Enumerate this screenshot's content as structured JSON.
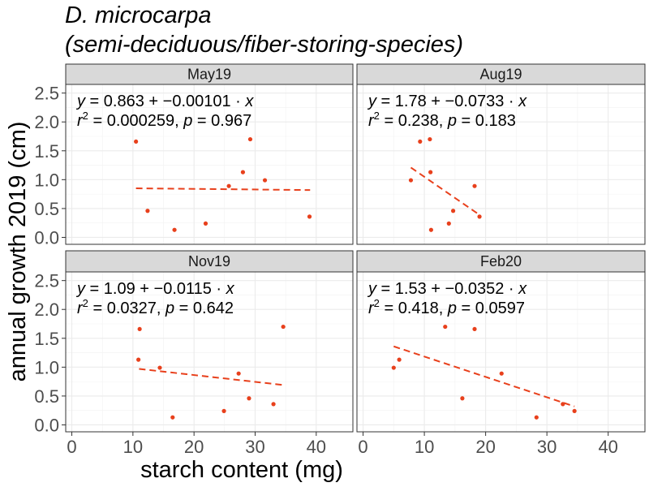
{
  "chart_data": {
    "type": "scatter",
    "title_line1": "D. microcarpa",
    "title_line2": "(semi-deciduous/fiber-storing-species)",
    "xlabel": "starch content (mg)",
    "ylabel": "annual growth 2019 (cm)",
    "xlim": [
      -1,
      46
    ],
    "ylim": [
      -0.12,
      2.65
    ],
    "x_ticks": [
      0,
      10,
      20,
      30,
      40
    ],
    "y_ticks": [
      0.0,
      0.5,
      1.0,
      1.5,
      2.0,
      2.5
    ],
    "x_tick_labels": [
      "0",
      "10",
      "20",
      "30",
      "40"
    ],
    "y_tick_labels": [
      "0.0",
      "0.5",
      "1.0",
      "1.5",
      "2.0",
      "2.5"
    ],
    "point_color": "#e8401c",
    "line_color": "#e8401c",
    "grid": true,
    "panels": [
      {
        "label": "May19",
        "eq_intercept": "0.863",
        "eq_slope": "0.00101",
        "r2": "0.000259",
        "p": "0.967",
        "fit_x": [
          10.5,
          39
        ],
        "fit_y": [
          0.85,
          0.82
        ],
        "points": [
          {
            "x": 10.5,
            "y": 1.66
          },
          {
            "x": 12.4,
            "y": 0.46
          },
          {
            "x": 16.8,
            "y": 0.13
          },
          {
            "x": 21.9,
            "y": 0.24
          },
          {
            "x": 25.7,
            "y": 0.89
          },
          {
            "x": 28.0,
            "y": 1.13
          },
          {
            "x": 29.2,
            "y": 1.7
          },
          {
            "x": 31.6,
            "y": 0.99
          },
          {
            "x": 38.9,
            "y": 0.36
          }
        ]
      },
      {
        "label": "Aug19",
        "eq_intercept": "1.78",
        "eq_slope": "0.0733",
        "r2": "0.238",
        "p": "0.183",
        "fit_x": [
          7.8,
          19
        ],
        "fit_y": [
          1.21,
          0.39
        ],
        "points": [
          {
            "x": 7.8,
            "y": 0.99
          },
          {
            "x": 9.3,
            "y": 1.66
          },
          {
            "x": 10.9,
            "y": 1.7
          },
          {
            "x": 11.0,
            "y": 1.13
          },
          {
            "x": 11.1,
            "y": 0.13
          },
          {
            "x": 14.0,
            "y": 0.24
          },
          {
            "x": 14.7,
            "y": 0.46
          },
          {
            "x": 18.2,
            "y": 0.89
          },
          {
            "x": 19.0,
            "y": 0.36
          }
        ]
      },
      {
        "label": "Nov19",
        "eq_intercept": "1.09",
        "eq_slope": "0.0115",
        "r2": "0.0327",
        "p": "0.642",
        "fit_x": [
          11,
          34.7
        ],
        "fit_y": [
          0.97,
          0.69
        ],
        "points": [
          {
            "x": 10.9,
            "y": 1.13
          },
          {
            "x": 11.1,
            "y": 1.66
          },
          {
            "x": 14.4,
            "y": 0.99
          },
          {
            "x": 16.5,
            "y": 0.13
          },
          {
            "x": 24.9,
            "y": 0.24
          },
          {
            "x": 27.3,
            "y": 0.89
          },
          {
            "x": 29.0,
            "y": 0.46
          },
          {
            "x": 33.0,
            "y": 0.36
          },
          {
            "x": 34.6,
            "y": 1.7
          }
        ]
      },
      {
        "label": "Feb20",
        "eq_intercept": "1.53",
        "eq_slope": "0.0352",
        "r2": "0.418",
        "p": "0.0597",
        "fit_x": [
          5,
          34.5
        ],
        "fit_y": [
          1.36,
          0.32
        ],
        "points": [
          {
            "x": 5.0,
            "y": 0.99
          },
          {
            "x": 5.9,
            "y": 1.13
          },
          {
            "x": 13.4,
            "y": 1.7
          },
          {
            "x": 16.2,
            "y": 0.46
          },
          {
            "x": 18.2,
            "y": 1.66
          },
          {
            "x": 22.6,
            "y": 0.89
          },
          {
            "x": 28.3,
            "y": 0.13
          },
          {
            "x": 32.6,
            "y": 0.36
          },
          {
            "x": 34.5,
            "y": 0.24
          }
        ]
      }
    ]
  }
}
